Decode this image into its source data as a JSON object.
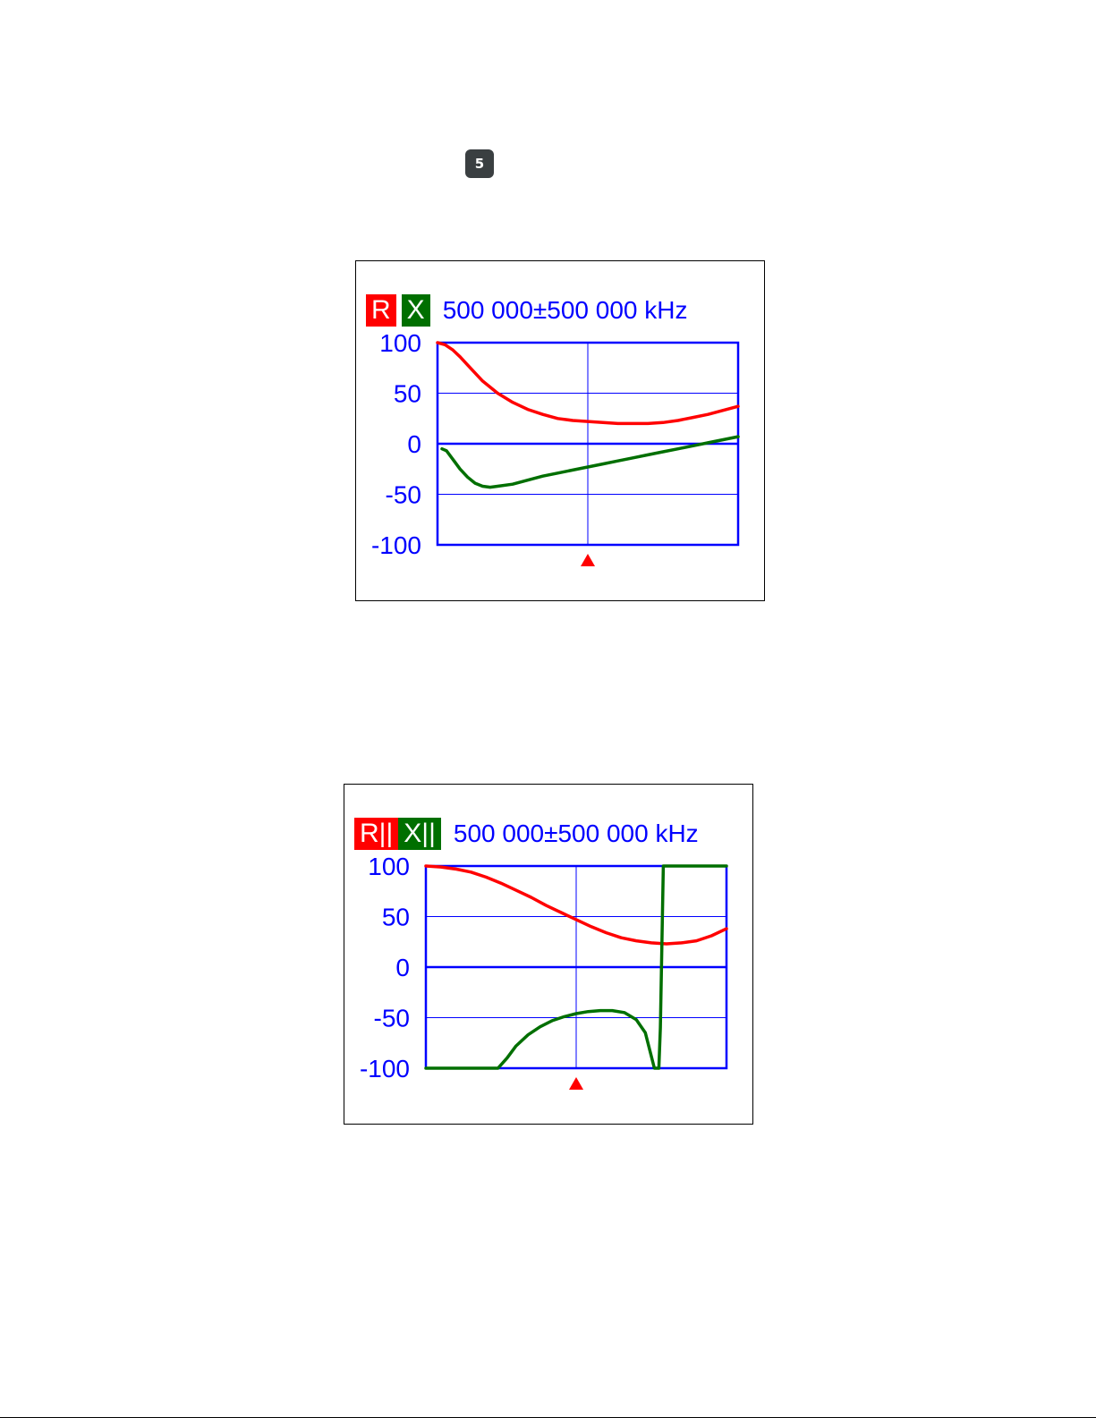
{
  "badge": {
    "label": "5"
  },
  "chart_data": [
    {
      "type": "line",
      "tag_r": "R",
      "tag_x": "X",
      "header_text": "500 000±500 000 kHz",
      "ylim": [
        -100,
        100
      ],
      "yticks": [
        100,
        50,
        0,
        -50,
        -100
      ],
      "xlim": [
        0,
        1000000
      ],
      "grid": true,
      "marker_x": 500000,
      "series": [
        {
          "color": "#ff0000",
          "x": [
            0,
            25000,
            50000,
            75000,
            100000,
            150000,
            200000,
            250000,
            300000,
            350000,
            400000,
            450000,
            500000,
            550000,
            600000,
            650000,
            700000,
            750000,
            800000,
            850000,
            900000,
            950000,
            1000000
          ],
          "values": [
            100,
            98,
            93,
            86,
            78,
            62,
            50,
            41,
            34,
            29,
            25,
            23,
            22,
            21,
            20,
            20,
            20,
            21,
            23,
            26,
            29,
            33,
            37
          ]
        },
        {
          "color": "#006f00",
          "x": [
            15000,
            30000,
            50000,
            75000,
            100000,
            125000,
            150000,
            175000,
            200000,
            250000,
            300000,
            350000,
            400000,
            450000,
            500000,
            550000,
            600000,
            650000,
            700000,
            750000,
            800000,
            850000,
            900000,
            950000,
            1000000
          ],
          "values": [
            -5,
            -7,
            -15,
            -25,
            -33,
            -39,
            -42,
            -43,
            -42,
            -40,
            -36,
            -32,
            -29,
            -26,
            -23,
            -20,
            -17,
            -14,
            -11,
            -8,
            -5,
            -2,
            1,
            4,
            7
          ]
        }
      ]
    },
    {
      "type": "line",
      "tag_r": "R||",
      "tag_x": "X||",
      "header_text": "500 000±500 000 kHz",
      "ylim": [
        -100,
        100
      ],
      "yticks": [
        100,
        50,
        0,
        -50,
        -100
      ],
      "xlim": [
        0,
        1000000
      ],
      "grid": true,
      "marker_x": 500000,
      "series": [
        {
          "color": "#ff0000",
          "x": [
            0,
            50000,
            100000,
            150000,
            200000,
            250000,
            300000,
            350000,
            400000,
            450000,
            500000,
            550000,
            600000,
            650000,
            700000,
            750000,
            800000,
            850000,
            900000,
            950000,
            1000000
          ],
          "values": [
            100,
            99,
            97,
            94,
            89,
            83,
            76,
            69,
            61,
            54,
            47,
            40,
            34,
            29,
            26,
            24,
            23,
            24,
            26,
            31,
            38
          ]
        },
        {
          "color": "#006f00",
          "x": [
            0,
            100000,
            200000,
            240000,
            270000,
            300000,
            340000,
            380000,
            420000,
            460000,
            500000,
            540000,
            580000,
            620000,
            660000,
            700000,
            730000,
            760000,
            770000,
            775000,
            780000,
            790000,
            850000,
            900000,
            950000,
            1000000
          ],
          "values": [
            -100,
            -100,
            -100,
            -100,
            -90,
            -78,
            -67,
            -59,
            -53,
            -49,
            -46,
            -44,
            -43,
            -43,
            -45,
            -52,
            -65,
            -100,
            -100,
            -100,
            -60,
            100,
            100,
            100,
            100,
            100
          ]
        }
      ]
    }
  ]
}
